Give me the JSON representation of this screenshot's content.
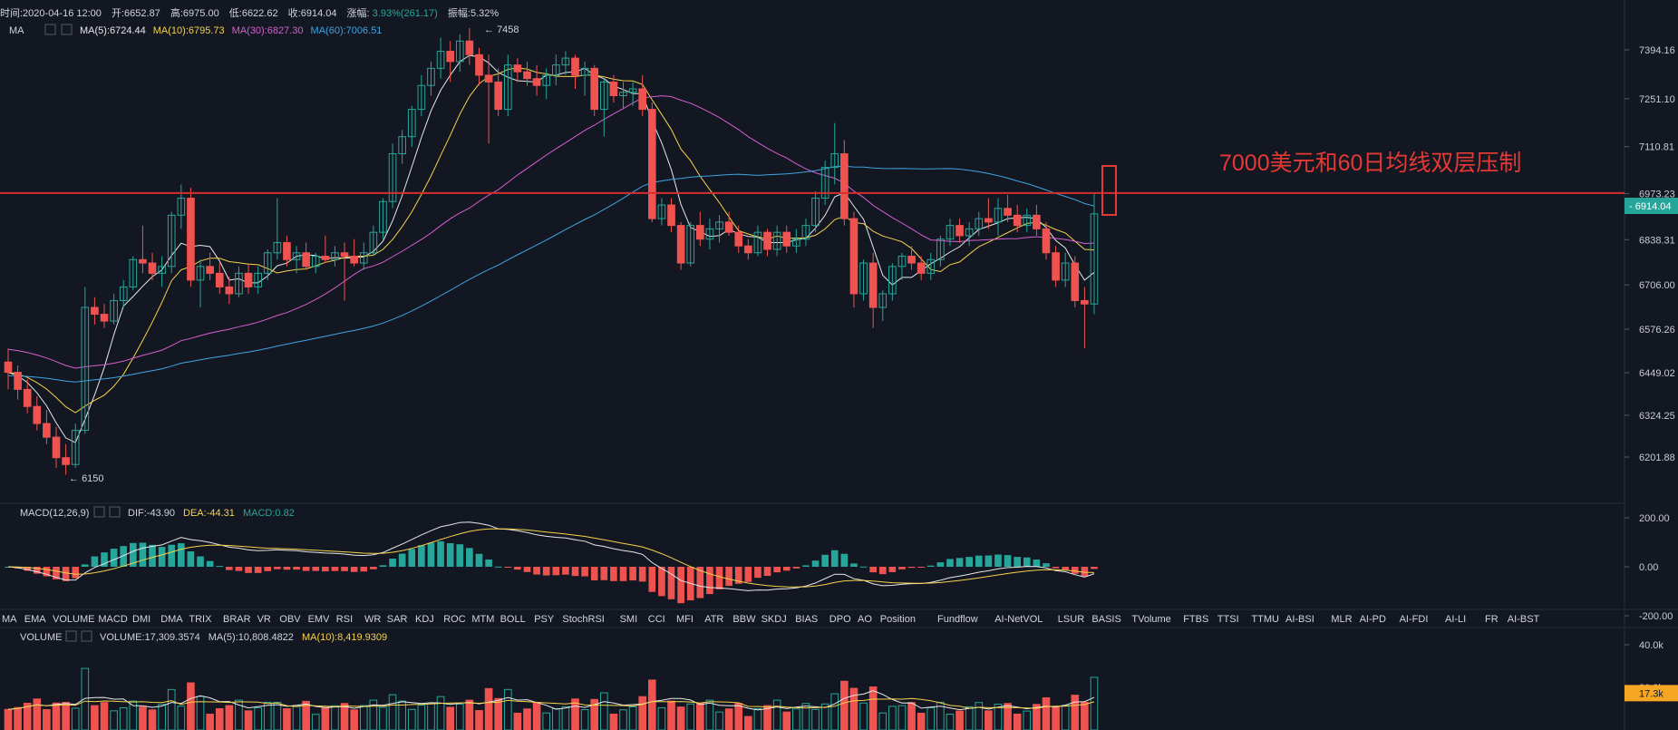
{
  "header": {
    "time": "时间:2020-04-16 12:00",
    "open": "开:6652.87",
    "high": "高:6975.00",
    "low": "低:6622.62",
    "close": "收:6914.04",
    "change_label": "涨幅:",
    "change_value": "3.93%(261.17)",
    "amplitude": "振幅:5.32%"
  },
  "ma_legend": {
    "name": "MA",
    "items": [
      {
        "label": "MA(5):6724.44",
        "color": "#e8e8e8"
      },
      {
        "label": "MA(10):6795.73",
        "color": "#f5d34b"
      },
      {
        "label": "MA(30):6827.30",
        "color": "#d65fcf"
      },
      {
        "label": "MA(60):7006.51",
        "color": "#3fa5e3"
      }
    ]
  },
  "macd_legend": {
    "name": "MACD(12,26,9)",
    "dif": "DIF:-43.90",
    "dea": "DEA:-44.31",
    "macd": "MACD:0.82"
  },
  "volume_legend": {
    "name": "VOLUME",
    "volume": "VOLUME:17,309.3574",
    "ma5": "MA(5):10,808.4822",
    "ma10": "MA(10):8,419.9309"
  },
  "annotation": {
    "text": "7000美元和60日均线双层压制",
    "color": "#e53935"
  },
  "colors": {
    "up": "#26a69a",
    "down": "#ef5350",
    "resistance": "#d32f2f",
    "current_price_bg": "#26a69a",
    "volume_badge_bg": "#f5a623"
  },
  "indicator_tabs": [
    "MA",
    "EMA",
    "VOLUME",
    "MACD",
    "DMI",
    "DMA",
    "TRIX",
    "BRAR",
    "VR",
    "OBV",
    "EMV",
    "RSI",
    "WR",
    "SAR",
    "KDJ",
    "ROC",
    "MTM",
    "BOLL",
    "PSY",
    "StochRSI",
    "SMI",
    "CCI",
    "MFI",
    "ATR",
    "BBW",
    "SKDJ",
    "BIAS",
    "DPO",
    "AO",
    "Position",
    "Fundflow",
    "AI-NetVOL",
    "LSUR",
    "BASIS",
    "TVolume",
    "FTBS",
    "TTSI",
    "TTMU",
    "AI-BSI",
    "MLR",
    "AI-PD",
    "AI-FDI",
    "AI-LI",
    "FR",
    "AI-BST"
  ],
  "active_tab": "MACD",
  "chart_data": {
    "type": "candlestick",
    "price_axis": {
      "ticks": [
        "7394.16",
        "7251.10",
        "7110.81",
        "6973.23",
        "6838.31",
        "6706.00",
        "6576.26",
        "6449.02",
        "6324.25",
        "6201.88"
      ],
      "range": [
        6150,
        7458
      ]
    },
    "current_price": "6914.04",
    "high_marker": "7458",
    "low_marker": "6150",
    "resistance_level": 6975,
    "candles": [
      [
        6480,
        6520,
        6400,
        6450
      ],
      [
        6450,
        6470,
        6370,
        6400
      ],
      [
        6400,
        6430,
        6330,
        6350
      ],
      [
        6350,
        6380,
        6280,
        6300
      ],
      [
        6300,
        6340,
        6240,
        6260
      ],
      [
        6260,
        6290,
        6170,
        6200
      ],
      [
        6200,
        6240,
        6150,
        6180
      ],
      [
        6180,
        6300,
        6170,
        6280
      ],
      [
        6280,
        6700,
        6270,
        6640
      ],
      [
        6640,
        6670,
        6590,
        6620
      ],
      [
        6620,
        6650,
        6580,
        6600
      ],
      [
        6600,
        6680,
        6590,
        6660
      ],
      [
        6660,
        6720,
        6640,
        6700
      ],
      [
        6700,
        6790,
        6690,
        6780
      ],
      [
        6780,
        6880,
        6740,
        6770
      ],
      [
        6770,
        6800,
        6720,
        6740
      ],
      [
        6740,
        6790,
        6700,
        6760
      ],
      [
        6760,
        6920,
        6740,
        6910
      ],
      [
        6910,
        7000,
        6870,
        6960
      ],
      [
        6960,
        6990,
        6700,
        6720
      ],
      [
        6720,
        6780,
        6640,
        6760
      ],
      [
        6760,
        6800,
        6720,
        6740
      ],
      [
        6740,
        6770,
        6680,
        6700
      ],
      [
        6700,
        6730,
        6650,
        6680
      ],
      [
        6680,
        6760,
        6670,
        6740
      ],
      [
        6740,
        6770,
        6680,
        6700
      ],
      [
        6700,
        6760,
        6680,
        6740
      ],
      [
        6740,
        6810,
        6720,
        6800
      ],
      [
        6800,
        6960,
        6780,
        6830
      ],
      [
        6830,
        6850,
        6760,
        6780
      ],
      [
        6780,
        6820,
        6740,
        6800
      ],
      [
        6800,
        6830,
        6750,
        6760
      ],
      [
        6760,
        6800,
        6740,
        6790
      ],
      [
        6790,
        6850,
        6770,
        6780
      ],
      [
        6780,
        6820,
        6760,
        6800
      ],
      [
        6800,
        6830,
        6660,
        6790
      ],
      [
        6790,
        6840,
        6760,
        6770
      ],
      [
        6770,
        6830,
        6750,
        6800
      ],
      [
        6800,
        6880,
        6790,
        6860
      ],
      [
        6860,
        6960,
        6840,
        6950
      ],
      [
        6950,
        7120,
        6930,
        7090
      ],
      [
        7090,
        7160,
        7060,
        7140
      ],
      [
        7140,
        7230,
        7110,
        7220
      ],
      [
        7220,
        7320,
        7200,
        7290
      ],
      [
        7290,
        7360,
        7260,
        7340
      ],
      [
        7340,
        7430,
        7310,
        7390
      ],
      [
        7390,
        7420,
        7300,
        7360
      ],
      [
        7360,
        7440,
        7330,
        7420
      ],
      [
        7420,
        7458,
        7350,
        7380
      ],
      [
        7380,
        7400,
        7290,
        7320
      ],
      [
        7320,
        7380,
        7120,
        7300
      ],
      [
        7300,
        7340,
        7200,
        7220
      ],
      [
        7220,
        7380,
        7200,
        7350
      ],
      [
        7350,
        7370,
        7300,
        7330
      ],
      [
        7330,
        7360,
        7290,
        7310
      ],
      [
        7310,
        7350,
        7260,
        7290
      ],
      [
        7290,
        7340,
        7250,
        7320
      ],
      [
        7320,
        7380,
        7290,
        7350
      ],
      [
        7350,
        7390,
        7320,
        7370
      ],
      [
        7370,
        7380,
        7280,
        7320
      ],
      [
        7320,
        7360,
        7260,
        7340
      ],
      [
        7340,
        7350,
        7200,
        7220
      ],
      [
        7220,
        7310,
        7140,
        7300
      ],
      [
        7300,
        7320,
        7240,
        7260
      ],
      [
        7260,
        7300,
        7220,
        7270
      ],
      [
        7270,
        7300,
        7230,
        7280
      ],
      [
        7280,
        7320,
        7200,
        7220
      ],
      [
        7220,
        7240,
        6890,
        6900
      ],
      [
        6900,
        6960,
        6880,
        6940
      ],
      [
        6940,
        6960,
        6860,
        6880
      ],
      [
        6880,
        6890,
        6750,
        6770
      ],
      [
        6770,
        6890,
        6760,
        6880
      ],
      [
        6880,
        6920,
        6820,
        6840
      ],
      [
        6840,
        6900,
        6810,
        6870
      ],
      [
        6870,
        6910,
        6830,
        6890
      ],
      [
        6890,
        6920,
        6850,
        6860
      ],
      [
        6860,
        6880,
        6800,
        6820
      ],
      [
        6820,
        6840,
        6780,
        6800
      ],
      [
        6800,
        6880,
        6790,
        6860
      ],
      [
        6860,
        6870,
        6790,
        6810
      ],
      [
        6810,
        6880,
        6790,
        6860
      ],
      [
        6860,
        6880,
        6800,
        6820
      ],
      [
        6820,
        6870,
        6800,
        6840
      ],
      [
        6840,
        6900,
        6820,
        6880
      ],
      [
        6880,
        6980,
        6860,
        6960
      ],
      [
        6960,
        7070,
        6940,
        7050
      ],
      [
        7050,
        7180,
        7000,
        7090
      ],
      [
        7090,
        7130,
        6880,
        6900
      ],
      [
        6900,
        6920,
        6640,
        6680
      ],
      [
        6680,
        6780,
        6660,
        6770
      ],
      [
        6770,
        6800,
        6580,
        6640
      ],
      [
        6640,
        6690,
        6600,
        6680
      ],
      [
        6680,
        6770,
        6660,
        6760
      ],
      [
        6760,
        6800,
        6720,
        6790
      ],
      [
        6790,
        6820,
        6750,
        6770
      ],
      [
        6770,
        6790,
        6720,
        6740
      ],
      [
        6740,
        6800,
        6720,
        6780
      ],
      [
        6780,
        6850,
        6760,
        6840
      ],
      [
        6840,
        6900,
        6820,
        6880
      ],
      [
        6880,
        6900,
        6830,
        6850
      ],
      [
        6850,
        6890,
        6820,
        6870
      ],
      [
        6870,
        6920,
        6850,
        6900
      ],
      [
        6900,
        6960,
        6870,
        6890
      ],
      [
        6890,
        6960,
        6850,
        6930
      ],
      [
        6930,
        6970,
        6890,
        6910
      ],
      [
        6910,
        6940,
        6860,
        6880
      ],
      [
        6880,
        6930,
        6860,
        6910
      ],
      [
        6910,
        6940,
        6850,
        6870
      ],
      [
        6870,
        6890,
        6780,
        6800
      ],
      [
        6800,
        6820,
        6700,
        6720
      ],
      [
        6720,
        6800,
        6700,
        6770
      ],
      [
        6770,
        6790,
        6640,
        6660
      ],
      [
        6660,
        6700,
        6520,
        6650
      ],
      [
        6650,
        6975,
        6620,
        6914
      ]
    ],
    "volume_axis": {
      "ticks": [
        "40.0k",
        "20.0k"
      ],
      "current": "17.3k"
    },
    "macd_axis": {
      "ticks": [
        "200.00",
        "0.00",
        "-200.00"
      ]
    }
  }
}
